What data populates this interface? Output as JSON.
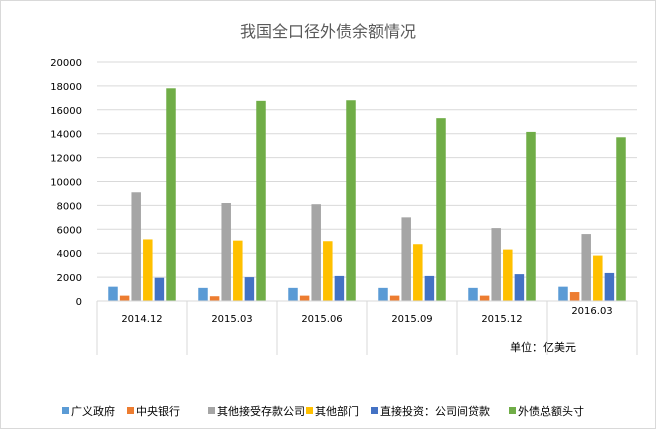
{
  "chart_data": {
    "type": "bar",
    "title": "我国全口径外债余额情况",
    "categories": [
      "2014.12",
      "2015.03",
      "2015.06",
      "2015.09",
      "2015.12",
      "2016.03"
    ],
    "series": [
      {
        "name": "广义政府",
        "color": "#5b9bd5",
        "values": [
          1200,
          1100,
          1100,
          1100,
          1100,
          1200
        ]
      },
      {
        "name": "中央银行",
        "color": "#ed7d31",
        "values": [
          450,
          400,
          450,
          450,
          450,
          750
        ]
      },
      {
        "name": "其他接受存款公司",
        "color": "#a5a5a5",
        "values": [
          9100,
          8200,
          8100,
          7000,
          6100,
          5600
        ]
      },
      {
        "name": "其他部门",
        "color": "#ffc000",
        "values": [
          5150,
          5050,
          5000,
          4750,
          4300,
          3800
        ]
      },
      {
        "name": "直接投资：公司间贷款",
        "color": "#4472c4",
        "values": [
          1950,
          2000,
          2100,
          2100,
          2250,
          2350
        ]
      },
      {
        "name": "外债总额头寸",
        "color": "#70ad47",
        "values": [
          17800,
          16750,
          16800,
          15300,
          14150,
          13700
        ]
      }
    ],
    "yticks": [
      "20000",
      "18000",
      "16000",
      "14000",
      "12000",
      "10000",
      "8000",
      "6000",
      "4000",
      "2000",
      "0"
    ],
    "ylim": [
      0,
      20000
    ],
    "grid": true,
    "legend_position": "bottom",
    "unit_note": "单位：亿美元"
  }
}
